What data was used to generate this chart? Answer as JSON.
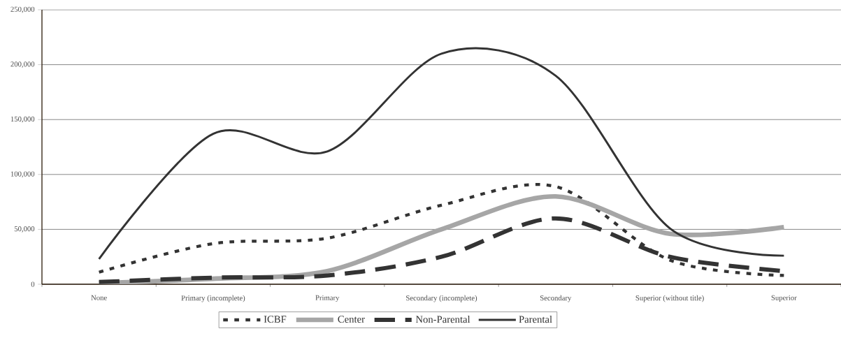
{
  "chart_data": {
    "type": "line",
    "categories": [
      "None",
      "Primary (incomplete)",
      "Primary",
      "Secondary (incomplete)",
      "Secondary",
      "Superior (without title)",
      "Superior"
    ],
    "series": [
      {
        "name": "ICBF",
        "color": "#333333",
        "line_style": "dotted",
        "values": [
          11000,
          37000,
          42000,
          72000,
          89000,
          22000,
          8000
        ]
      },
      {
        "name": "Center",
        "color": "#a6a6a6",
        "line_style": "solid",
        "values": [
          1000,
          5000,
          12000,
          50000,
          80000,
          46000,
          52000
        ]
      },
      {
        "name": "Non-Parental",
        "color": "#333333",
        "line_style": "dashed",
        "values": [
          2000,
          6000,
          8000,
          25000,
          60000,
          25000,
          12000
        ]
      },
      {
        "name": "Parental",
        "color": "#333333",
        "line_style": "solid",
        "values": [
          23000,
          137000,
          121000,
          210000,
          190000,
          51000,
          26000
        ]
      }
    ],
    "ylim": [
      0,
      250000
    ],
    "yticks": [
      {
        "value": 0,
        "label": "0"
      },
      {
        "value": 50000,
        "label": "50,000"
      },
      {
        "value": 100000,
        "label": "100,000"
      },
      {
        "value": 150000,
        "label": "150,000"
      },
      {
        "value": 200000,
        "label": "200,000"
      },
      {
        "value": 250000,
        "label": "250,000"
      }
    ],
    "grid": "y",
    "legend": "bottom",
    "marker": "none"
  }
}
